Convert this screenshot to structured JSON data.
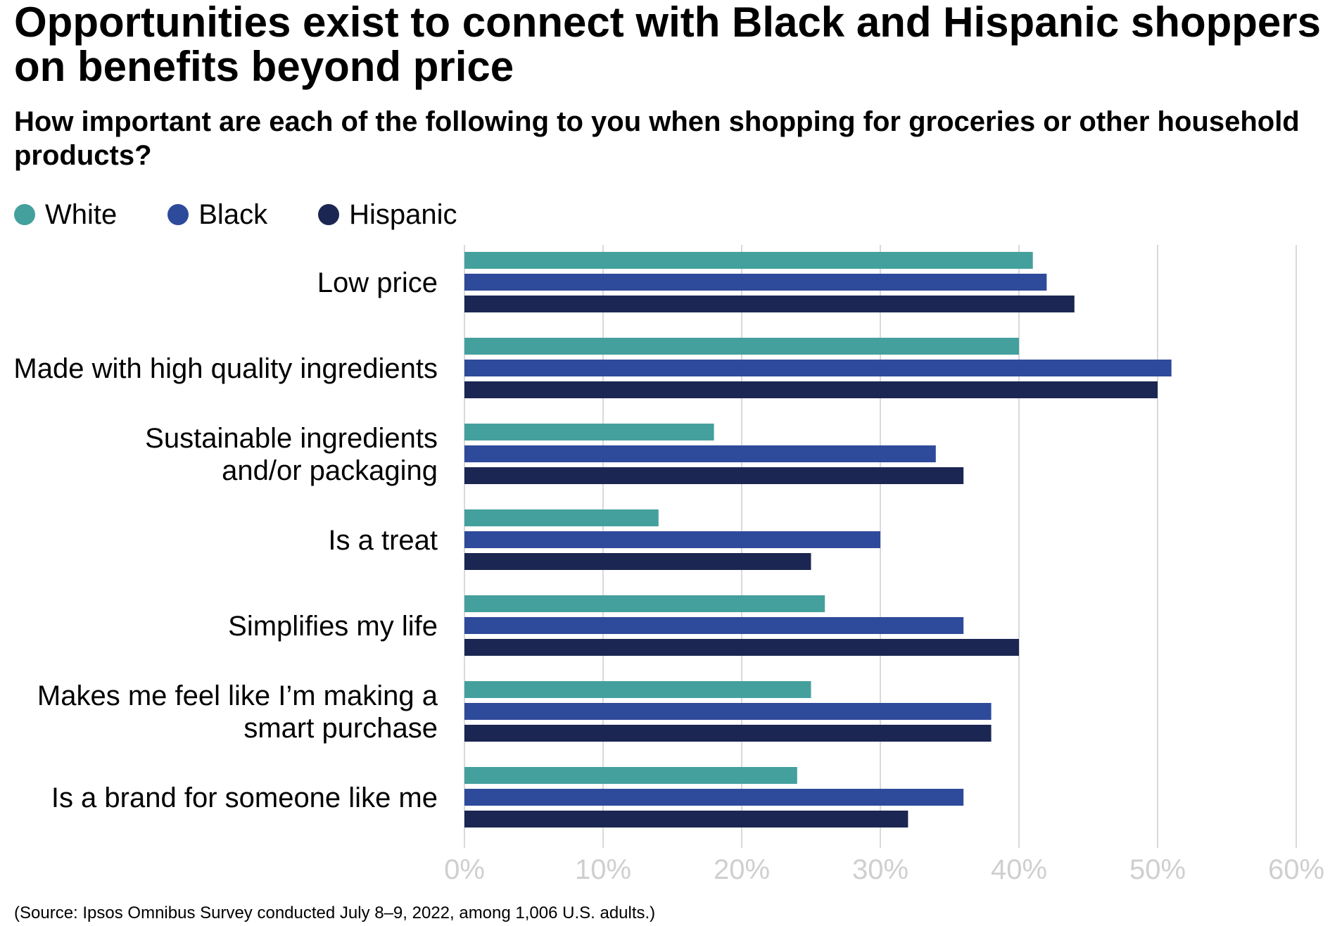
{
  "title": "Opportunities exist to connect with Black and Hispanic shoppers on benefits beyond price",
  "subtitle": "How important are each of the following to you when shopping for groceries or other household products?",
  "source": "(Source: Ipsos Omnibus Survey conducted July 8–9, 2022, among 1,006 U.S. adults.)",
  "legend": [
    {
      "label": "White",
      "color": "#44a09d"
    },
    {
      "label": "Black",
      "color": "#2e4a9a"
    },
    {
      "label": "Hispanic",
      "color": "#1b2652"
    }
  ],
  "chart_data": {
    "type": "bar",
    "orientation": "horizontal",
    "title": "Opportunities exist to connect with Black and Hispanic shoppers on benefits beyond price",
    "subtitle": "How important are each of the following to you when shopping for groceries or other household products?",
    "categories": [
      [
        "Low price"
      ],
      [
        "Made with high quality ingredients"
      ],
      [
        "Sustainable ingredients",
        "and/or packaging"
      ],
      [
        "Is a treat"
      ],
      [
        "Simplifies my life"
      ],
      [
        "Makes me feel like I’m making a",
        "smart purchase"
      ],
      [
        "Is a brand for someone like me"
      ]
    ],
    "series": [
      {
        "name": "White",
        "color": "#44a09d",
        "values": [
          41,
          40,
          18,
          14,
          26,
          25,
          24
        ]
      },
      {
        "name": "Black",
        "color": "#2e4a9a",
        "values": [
          42,
          51,
          34,
          30,
          36,
          38,
          36
        ]
      },
      {
        "name": "Hispanic",
        "color": "#1b2652",
        "values": [
          44,
          50,
          36,
          25,
          40,
          38,
          32
        ]
      }
    ],
    "xlim": [
      0,
      60
    ],
    "xticks": [
      0,
      10,
      20,
      30,
      40,
      50,
      60
    ],
    "xtick_labels": [
      "0%",
      "10%",
      "20%",
      "30%",
      "40%",
      "50%",
      "60%"
    ],
    "unit": "%",
    "grid": "vertical",
    "legend_position": "top-left"
  }
}
